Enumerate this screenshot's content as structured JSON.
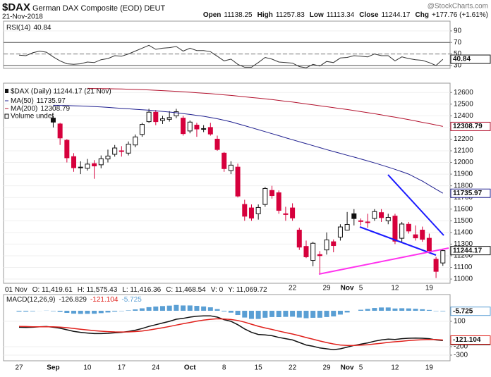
{
  "header": {
    "symbol": "$DAX",
    "name": "German DAX Composite (EOD) DEUT",
    "date": "21-Nov-2018",
    "watermark": "@StockCharts.com",
    "quote": [
      {
        "label": "Open",
        "value": "11138.25"
      },
      {
        "label": "High",
        "value": "11257.83"
      },
      {
        "label": "Low",
        "value": "11113.34"
      },
      {
        "label": "Close",
        "value": "11244.17"
      },
      {
        "label": "Chg",
        "value": "+177.76 (+1.61%)"
      }
    ]
  },
  "info_bar": [
    "01 Nov",
    "O: 11,419.61",
    "H: 11,575.43",
    "L: 11,416.36",
    "C: 11,468.54",
    "V: 0",
    "Y: 11,069.72"
  ],
  "chart_data": [
    {
      "type": "line",
      "ylim": [
        25,
        107
      ],
      "yticks": [
        90,
        70,
        50,
        30
      ],
      "reference_lines": [
        70,
        30
      ],
      "midline": 50,
      "series": [
        {
          "name": "RSI(14)",
          "color": "#333333",
          "last_label": "40.84",
          "values": [
            48,
            47,
            52,
            55,
            53,
            45,
            38,
            33,
            32,
            33,
            36,
            35,
            40,
            42,
            47,
            46,
            50,
            55,
            60,
            65,
            58,
            60,
            61,
            63,
            55,
            60,
            56,
            56,
            54,
            46,
            38,
            41,
            32,
            27,
            27,
            35,
            44,
            41,
            36,
            35,
            34,
            28,
            26,
            32,
            29,
            37,
            35,
            43,
            44,
            47,
            46,
            45,
            50,
            47,
            47,
            38,
            45,
            42,
            40,
            39,
            35,
            30,
            40.84
          ]
        }
      ]
    },
    {
      "type": "candlestick",
      "name": "$DAX (Daily) 11244.17 (21 Nov)",
      "last_label": "11244.17",
      "volume_label": "Volume undef",
      "up_color": "#111111",
      "down_color": "#d6003c",
      "ylim": [
        10964,
        12680
      ],
      "yticks": [
        11000,
        11100,
        11200,
        11300,
        11400,
        11500,
        11600,
        11700,
        11800,
        11900,
        12000,
        12100,
        12200,
        12300,
        12400,
        12500,
        12600
      ],
      "open": [
        null,
        null,
        null,
        null,
        null,
        12380,
        12330,
        12190,
        12050,
        11960,
        11950,
        11990,
        11980,
        12030,
        12070,
        12100,
        12080,
        12150,
        12240,
        12350,
        12430,
        12360,
        12370,
        12400,
        12380,
        12270,
        12320,
        12290,
        12300,
        12200,
        12080,
        11930,
        11960,
        11640,
        11610,
        11560,
        11640,
        11760,
        11740,
        11560,
        11610,
        11420,
        11280,
        11160,
        11210,
        11250,
        11320,
        11360,
        11419.61,
        11560,
        11500,
        11490,
        11520,
        11570,
        11500,
        11540,
        11350,
        11470,
        11380,
        11420,
        11350,
        11170,
        11138.25
      ],
      "high": [
        null,
        null,
        null,
        null,
        null,
        12400,
        12340,
        12200,
        12080,
        12010,
        12030,
        12020,
        12060,
        12110,
        12150,
        12140,
        12180,
        12240,
        12340,
        12460,
        12450,
        12400,
        12440,
        12460,
        12400,
        12360,
        12340,
        12320,
        12340,
        12230,
        12090,
        12010,
        11990,
        11680,
        11640,
        11640,
        11790,
        11800,
        11760,
        11620,
        11650,
        11440,
        11330,
        11320,
        11240,
        11400,
        11340,
        11470,
        11575.43,
        11600,
        11520,
        11560,
        11600,
        11600,
        11560,
        11560,
        11490,
        11490,
        11460,
        11450,
        11390,
        11190,
        11257.83
      ],
      "low": [
        null,
        null,
        null,
        null,
        null,
        12300,
        12150,
        12000,
        11920,
        11900,
        11930,
        11860,
        11950,
        12000,
        12050,
        12050,
        12060,
        12130,
        12220,
        12340,
        12320,
        12330,
        12350,
        12380,
        12230,
        12250,
        12220,
        12260,
        12230,
        12100,
        11920,
        11900,
        11700,
        11500,
        11500,
        11510,
        11620,
        11690,
        11560,
        11500,
        11500,
        11250,
        11180,
        11110,
        11050,
        11210,
        11230,
        11330,
        11416.36,
        11460,
        11460,
        11440,
        11500,
        11490,
        11470,
        11300,
        11320,
        11390,
        11330,
        11320,
        11220,
        11009,
        11113.34
      ],
      "close": [
        null,
        null,
        null,
        null,
        null,
        12346,
        12210,
        12040,
        11955,
        11959,
        11986,
        11970,
        12032,
        12055,
        12124,
        12096,
        12157,
        12219,
        12326,
        12431,
        12350,
        12374,
        12385,
        12435,
        12247,
        12346,
        12287,
        12287,
        12244,
        12111,
        11947,
        11977,
        11712,
        11539,
        11523,
        11614,
        11777,
        11716,
        11589,
        11554,
        11524,
        11274,
        11191,
        11307,
        11201,
        11336,
        11287,
        11447,
        11468.54,
        11519,
        11494,
        11484,
        11579,
        11527,
        11529,
        11325,
        11472,
        11412,
        11353,
        11341,
        11244,
        11066,
        11244.17
      ],
      "series": [
        {
          "name": "MA(50)",
          "color": "#1f1f8f",
          "last_label": "11735.97",
          "values": [
            null,
            null,
            null,
            null,
            null,
            12490,
            12489,
            12488,
            12486,
            12484,
            12482,
            12479,
            12476,
            12472,
            12468,
            12464,
            12460,
            12456,
            12452,
            12448,
            12443,
            12438,
            12432,
            12426,
            12419,
            12412,
            12404,
            12396,
            12386,
            12375,
            12362,
            12348,
            12332,
            12315,
            12298,
            12281,
            12264,
            12247,
            12230,
            12212,
            12195,
            12178,
            12161,
            12144,
            12127,
            12110,
            12094,
            12078,
            12062,
            12046,
            12030,
            12013,
            11996,
            11978,
            11960,
            11941,
            11921,
            11900,
            11870,
            11840,
            11805,
            11770,
            11735.97
          ]
        },
        {
          "name": "MA(200)",
          "color": "#b3122e",
          "last_label": "12308.79",
          "values": [
            null,
            null,
            null,
            null,
            null,
            null,
            null,
            null,
            null,
            null,
            12635,
            12634,
            12633,
            12632,
            12631,
            12630,
            12628,
            12626,
            12624,
            12622,
            12619,
            12616,
            12613,
            12610,
            12606,
            12602,
            12598,
            12594,
            12590,
            12585,
            12580,
            12575,
            12569,
            12563,
            12557,
            12551,
            12545,
            12539,
            12532,
            12525,
            12518,
            12510,
            12502,
            12494,
            12486,
            12478,
            12470,
            12462,
            12454,
            12445,
            12436,
            12427,
            12418,
            12408,
            12398,
            12388,
            12378,
            12367,
            12356,
            12344,
            12333,
            12321,
            12308.79
          ]
        }
      ]
    },
    {
      "type": "line",
      "title": "MACD(12,26,9)",
      "ylim": [
        -367,
        417
      ],
      "yticks": [
        100,
        -200,
        -300
      ],
      "y2lim": [
        -592,
        192
      ],
      "categories": [
        "27",
        null,
        null,
        null,
        null,
        "Sep",
        null,
        null,
        null,
        null,
        "10",
        null,
        null,
        null,
        null,
        "17",
        null,
        null,
        null,
        null,
        "24",
        null,
        null,
        null,
        null,
        "Oct",
        null,
        null,
        null,
        null,
        "8",
        null,
        null,
        null,
        null,
        "15",
        null,
        null,
        null,
        null,
        "22",
        null,
        null,
        null,
        null,
        "29",
        null,
        null,
        "Nov",
        null,
        "5",
        null,
        null,
        null,
        null,
        "12",
        null,
        null,
        null,
        null,
        "19",
        null,
        null
      ],
      "series": [
        {
          "type": "bar",
          "axis": "y2",
          "color": "#5a9fd4",
          "last_label": "-5.725",
          "values": [
            -10,
            -10,
            -6,
            -1,
            2,
            -5,
            -13,
            -25,
            -34,
            -37,
            -36,
            -35,
            -28,
            -20,
            -10,
            -4,
            5,
            16,
            29,
            43,
            50,
            56,
            61,
            69,
            63,
            63,
            58,
            51,
            41,
            20,
            -8,
            -22,
            -50,
            -80,
            -96,
            -97,
            -82,
            -74,
            -75,
            -72,
            -70,
            -80,
            -88,
            -83,
            -82,
            -74,
            -67,
            -45,
            -20,
            0,
            12,
            22,
            33,
            39,
            39,
            27,
            30,
            28,
            24,
            18,
            10,
            -4,
            -5.725
          ]
        },
        {
          "type": "line",
          "color": "#111111",
          "last_label": "-126.829",
          "values": [
            30,
            28,
            30,
            35,
            38,
            30,
            18,
            0,
            -18,
            -30,
            -38,
            -45,
            -45,
            -42,
            -35,
            -30,
            -20,
            -5,
            15,
            40,
            60,
            80,
            100,
            125,
            135,
            150,
            160,
            165,
            165,
            150,
            120,
            100,
            60,
            10,
            -30,
            -55,
            -60,
            -70,
            -90,
            -105,
            -120,
            -150,
            -180,
            -195,
            -215,
            -225,
            -235,
            -225,
            -205,
            -185,
            -170,
            -155,
            -135,
            -120,
            -110,
            -115,
            -105,
            -100,
            -98,
            -100,
            -105,
            -120,
            -126.829
          ]
        },
        {
          "type": "line",
          "color": "#e0201b",
          "last_label": "-121.104",
          "values": [
            40,
            38,
            36,
            36,
            36,
            35,
            31,
            25,
            16,
            7,
            -2,
            -10,
            -17,
            -22,
            -25,
            -26,
            -25,
            -21,
            -14,
            -3,
            10,
            24,
            39,
            56,
            72,
            87,
            102,
            114,
            124,
            130,
            128,
            122,
            110,
            90,
            66,
            42,
            22,
            4,
            -15,
            -33,
            -50,
            -70,
            -92,
            -112,
            -133,
            -151,
            -168,
            -180,
            -185,
            -185,
            -182,
            -177,
            -168,
            -159,
            -149,
            -142,
            -135,
            -128,
            -122,
            -118,
            -115,
            -116,
            -121.104
          ]
        }
      ]
    }
  ]
}
